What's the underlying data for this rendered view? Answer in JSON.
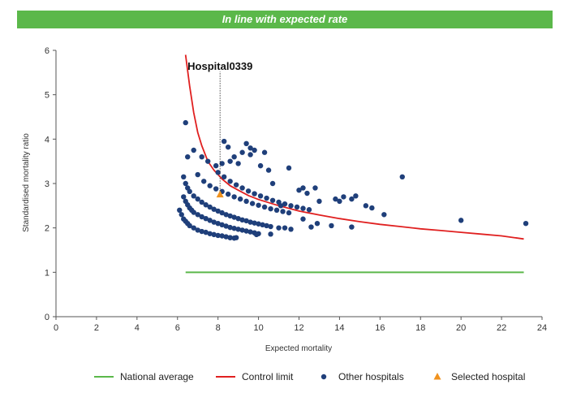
{
  "banner": {
    "text": "In line with expected rate",
    "color": "#5bb84a"
  },
  "colors": {
    "national_average": "#5bb84a",
    "control_limit": "#e02020",
    "other_hospitals": "#1f3f7a",
    "selected_hospital": "#f0921e"
  },
  "chart_data": {
    "type": "scatter",
    "xlabel": "Expected mortality",
    "ylabel": "Standardised mortality ratio",
    "xlim": [
      0,
      24
    ],
    "ylim": [
      0,
      6
    ],
    "xticks": [
      0,
      2,
      4,
      6,
      8,
      10,
      12,
      14,
      16,
      18,
      20,
      22,
      24
    ],
    "yticks": [
      0,
      1,
      2,
      3,
      4,
      5,
      6
    ],
    "legend_position": "bottom",
    "legend": [
      "National average",
      "Control limit",
      "Other hospitals",
      "Selected hospital"
    ],
    "national_average": {
      "name": "National average",
      "x": [
        6.4,
        23.1
      ],
      "y": [
        1,
        1
      ]
    },
    "control_limit": {
      "name": "Control limit",
      "x": [
        6.4,
        6.6,
        6.8,
        7.0,
        7.2,
        7.5,
        7.8,
        8.2,
        8.6,
        9.0,
        9.5,
        10.0,
        11.0,
        12.0,
        13.0,
        14.0,
        15.0,
        16.0,
        17.0,
        18.0,
        19.0,
        20.0,
        21.0,
        22.0,
        23.1
      ],
      "y": [
        5.9,
        5.2,
        4.6,
        4.15,
        3.85,
        3.5,
        3.3,
        3.1,
        2.95,
        2.85,
        2.73,
        2.64,
        2.5,
        2.38,
        2.29,
        2.21,
        2.14,
        2.08,
        2.03,
        1.98,
        1.94,
        1.9,
        1.86,
        1.82,
        1.75
      ]
    },
    "other_hospitals": {
      "name": "Other hospitals",
      "x": [
        6.1,
        6.2,
        6.3,
        6.4,
        6.5,
        6.6,
        6.8,
        7.0,
        7.2,
        7.4,
        7.6,
        7.8,
        8.0,
        8.2,
        8.4,
        8.6,
        8.8,
        6.3,
        6.4,
        6.5,
        6.6,
        6.7,
        6.8,
        7.0,
        7.2,
        7.4,
        7.6,
        7.8,
        8.0,
        8.2,
        8.4,
        8.6,
        8.8,
        9.0,
        9.2,
        9.4,
        9.6,
        9.8,
        10.0,
        6.3,
        6.4,
        6.5,
        6.6,
        6.8,
        7.0,
        7.2,
        7.4,
        7.6,
        7.8,
        8.0,
        8.2,
        8.4,
        8.6,
        8.8,
        9.0,
        9.2,
        9.4,
        9.6,
        9.8,
        10.0,
        10.2,
        10.4,
        10.6,
        7.0,
        7.3,
        7.6,
        7.9,
        8.2,
        8.5,
        8.8,
        9.1,
        9.4,
        9.7,
        10.0,
        10.3,
        10.6,
        10.9,
        11.2,
        11.5,
        8.0,
        8.3,
        8.6,
        8.9,
        9.2,
        9.5,
        9.8,
        10.1,
        10.4,
        10.7,
        11.0,
        11.3,
        11.6,
        11.9,
        12.2,
        12.5,
        6.4,
        6.5,
        6.8,
        7.2,
        7.5,
        7.9,
        8.2,
        8.3,
        8.5,
        8.6,
        8.8,
        9.0,
        9.2,
        9.4,
        9.6,
        9.6,
        9.8,
        10.1,
        10.3,
        10.5,
        10.7,
        11.1,
        11.5,
        12.0,
        12.2,
        12.4,
        12.8,
        13.0,
        13.8,
        14.0,
        14.2,
        14.6,
        14.8,
        15.3,
        15.6,
        16.2,
        17.1,
        20.0,
        23.2,
        11.0,
        11.3,
        11.6,
        12.2,
        12.6,
        12.9,
        13.6,
        14.6,
        8.9,
        8.6,
        9.9,
        10.6
      ],
      "y": [
        2.4,
        2.3,
        2.2,
        2.15,
        2.1,
        2.05,
        2.0,
        1.95,
        1.92,
        1.9,
        1.87,
        1.85,
        1.83,
        1.82,
        1.8,
        1.78,
        1.77,
        2.7,
        2.6,
        2.52,
        2.45,
        2.4,
        2.35,
        2.3,
        2.25,
        2.21,
        2.17,
        2.13,
        2.1,
        2.07,
        2.04,
        2.01,
        1.99,
        1.97,
        1.95,
        1.93,
        1.91,
        1.89,
        1.87,
        3.15,
        3.0,
        2.9,
        2.82,
        2.72,
        2.65,
        2.58,
        2.52,
        2.47,
        2.42,
        2.38,
        2.34,
        2.3,
        2.27,
        2.24,
        2.21,
        2.18,
        2.16,
        2.13,
        2.11,
        2.09,
        2.07,
        2.05,
        2.03,
        3.2,
        3.05,
        2.95,
        2.88,
        2.82,
        2.76,
        2.7,
        2.65,
        2.6,
        2.55,
        2.51,
        2.47,
        2.43,
        2.4,
        2.37,
        2.34,
        3.25,
        3.15,
        3.05,
        2.97,
        2.9,
        2.83,
        2.77,
        2.72,
        2.67,
        2.62,
        2.58,
        2.54,
        2.5,
        2.47,
        2.44,
        2.41,
        4.37,
        3.6,
        3.75,
        3.6,
        3.5,
        3.4,
        3.45,
        3.95,
        3.82,
        3.5,
        3.6,
        3.45,
        3.7,
        3.9,
        3.65,
        3.8,
        3.75,
        3.4,
        3.7,
        3.3,
        3.0,
        2.5,
        3.35,
        2.85,
        2.9,
        2.78,
        2.9,
        2.6,
        2.65,
        2.6,
        2.7,
        2.65,
        2.72,
        2.5,
        2.45,
        2.3,
        3.15,
        2.17,
        2.1,
        2.0,
        2.0,
        1.97,
        2.2,
        2.02,
        2.1,
        2.05,
        2.02,
        1.78,
        1.78,
        1.85,
        1.86
      ]
    },
    "selected_hospital": {
      "name": "Selected hospital",
      "label": "Hospital0339",
      "x": [
        8.1
      ],
      "y": [
        2.75
      ]
    }
  }
}
